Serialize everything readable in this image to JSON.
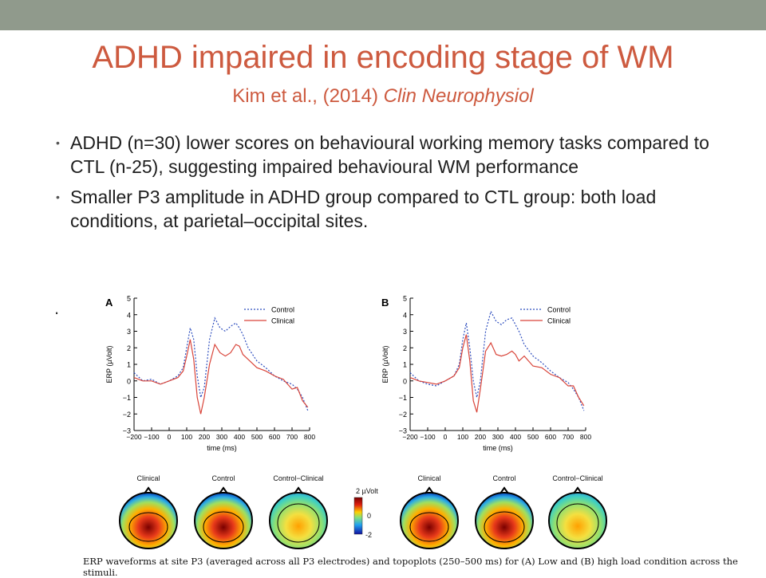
{
  "slide": {
    "title": "ADHD impaired in encoding stage of WM",
    "subtitle_authors": "Kim et al., (2014) ",
    "subtitle_journal": "Clin Neurophysiol",
    "bullets": [
      "ADHD (n=30) lower scores on behavioural working memory tasks compared to CTL (n-25), suggesting impaired behavioural  WM performance",
      "Smaller P3 amplitude in ADHD group compared to CTL group: both load conditions, at parietal–occipital sites."
    ],
    "stray_mark": ".",
    "caption": "ERP waveforms at site P3 (averaged across all P3 electrodes) and topoplots (250–500 ms) for (A) Low and (B) high load condition across the stimuli."
  },
  "colors": {
    "accent": "#cd5a3f",
    "top_bar": "#909a8c",
    "control": "#2f4fbf",
    "clinical": "#d9453a"
  },
  "chart_data": [
    {
      "type": "line",
      "panel_label": "A",
      "xlabel": "time (ms)",
      "ylabel": "ERP (µVolt)",
      "xlim": [
        -200,
        800
      ],
      "ylim": [
        -3,
        5
      ],
      "xticks": [
        "-200",
        "-100",
        "0",
        "100",
        "200",
        "300",
        "400",
        "500",
        "600",
        "700",
        "800"
      ],
      "yticks": [
        "5",
        "4",
        "3",
        "2",
        "1",
        "0",
        "-1",
        "-2",
        "-3"
      ],
      "grid": false,
      "legend_position": "top-right",
      "x": [
        -200,
        -150,
        -100,
        -50,
        0,
        50,
        80,
        100,
        120,
        140,
        160,
        180,
        200,
        230,
        260,
        290,
        320,
        350,
        380,
        400,
        420,
        450,
        500,
        550,
        600,
        650,
        700,
        730,
        760,
        790
      ],
      "series": [
        {
          "name": "Control",
          "style": "dashed",
          "values": [
            0.5,
            0.0,
            0.1,
            -0.2,
            0.0,
            0.3,
            0.8,
            2.0,
            3.2,
            2.5,
            0.3,
            -1.0,
            -0.4,
            2.5,
            3.8,
            3.2,
            3.0,
            3.3,
            3.5,
            3.2,
            2.8,
            2.0,
            1.2,
            0.8,
            0.3,
            0.0,
            -0.2,
            -0.5,
            -1.0,
            -1.8
          ]
        },
        {
          "name": "Clinical",
          "style": "solid",
          "values": [
            0.2,
            0.0,
            0.0,
            -0.2,
            0.0,
            0.2,
            0.6,
            1.5,
            2.5,
            1.3,
            -1.0,
            -2.0,
            -1.0,
            1.0,
            2.2,
            1.7,
            1.5,
            1.7,
            2.2,
            2.1,
            1.6,
            1.3,
            0.8,
            0.6,
            0.3,
            0.1,
            -0.5,
            -0.4,
            -1.2,
            -1.6
          ]
        }
      ]
    },
    {
      "type": "line",
      "panel_label": "B",
      "xlabel": "time (ms)",
      "ylabel": "ERP (µVolt)",
      "xlim": [
        -200,
        800
      ],
      "ylim": [
        -3,
        5
      ],
      "xticks": [
        "-200",
        "-100",
        "0",
        "100",
        "200",
        "300",
        "400",
        "500",
        "600",
        "700",
        "800"
      ],
      "yticks": [
        "5",
        "4",
        "3",
        "2",
        "1",
        "0",
        "-1",
        "-2",
        "-3"
      ],
      "grid": false,
      "legend_position": "top-right",
      "x": [
        -200,
        -150,
        -100,
        -50,
        0,
        50,
        80,
        100,
        120,
        140,
        160,
        180,
        200,
        230,
        260,
        290,
        320,
        350,
        380,
        400,
        420,
        450,
        500,
        550,
        600,
        650,
        700,
        730,
        760,
        790
      ],
      "series": [
        {
          "name": "Control",
          "style": "dashed",
          "values": [
            0.5,
            0.0,
            -0.2,
            -0.3,
            0.0,
            0.3,
            1.0,
            2.5,
            3.5,
            2.0,
            0.0,
            -1.0,
            0.0,
            3.0,
            4.2,
            3.6,
            3.4,
            3.7,
            3.8,
            3.4,
            3.0,
            2.2,
            1.5,
            1.1,
            0.6,
            0.2,
            -0.1,
            -0.5,
            -1.0,
            -1.8
          ]
        },
        {
          "name": "Clinical",
          "style": "solid",
          "values": [
            0.2,
            0.0,
            -0.1,
            -0.2,
            0.0,
            0.3,
            0.8,
            2.0,
            2.8,
            1.2,
            -1.2,
            -1.9,
            -0.5,
            1.8,
            2.3,
            1.6,
            1.5,
            1.6,
            1.8,
            1.6,
            1.2,
            1.5,
            0.9,
            0.8,
            0.4,
            0.2,
            -0.3,
            -0.3,
            -1.0,
            -1.5
          ]
        }
      ]
    }
  ],
  "topoplots": {
    "labels": [
      "Clinical",
      "Control",
      "Control−Clinical",
      "Clinical",
      "Control",
      "Control−Clinical"
    ],
    "colorbar_unit": "2 µVolt",
    "colorbar_mid": "0",
    "colorbar_min": "-2"
  }
}
